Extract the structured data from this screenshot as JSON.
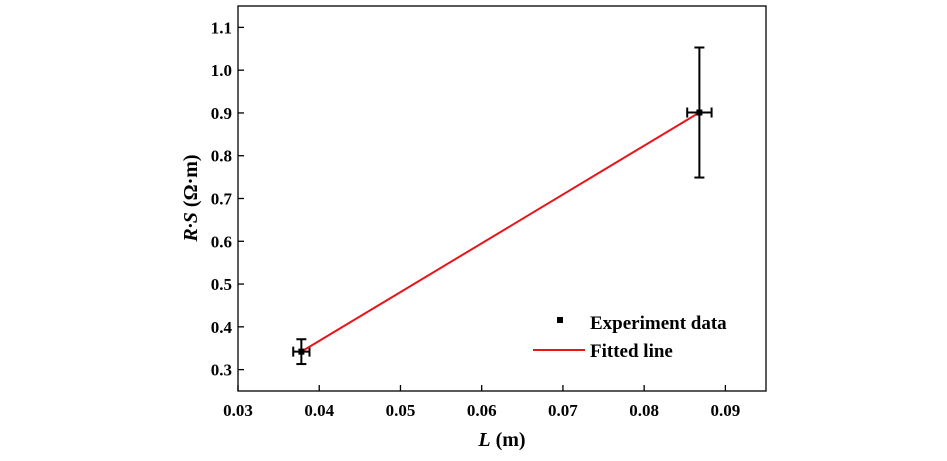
{
  "chart_data": {
    "type": "scatter",
    "xlabel": {
      "var": "L",
      "unit": " (m)"
    },
    "ylabel": {
      "var": "R·S",
      "unit": " (Ω·m)"
    },
    "xlim": [
      0.03,
      0.095
    ],
    "ylim": [
      0.25,
      1.15
    ],
    "xticks": [
      "0.03",
      "0.04",
      "0.05",
      "0.06",
      "0.07",
      "0.08",
      "0.09"
    ],
    "yticks": [
      "0.3",
      "0.4",
      "0.5",
      "0.6",
      "0.7",
      "0.8",
      "0.9",
      "1.0",
      "1.1"
    ],
    "grid": false,
    "legend_position": "bottom-right",
    "series": [
      {
        "name": "Experiment data",
        "kind": "points-with-error-bars",
        "color": "#000000",
        "points": [
          {
            "x": 0.0378,
            "y": 0.342,
            "xerr": 0.001,
            "yerr": 0.029
          },
          {
            "x": 0.0868,
            "y": 0.901,
            "xerr": 0.0015,
            "yerr": 0.152
          }
        ]
      },
      {
        "name": "Fitted line",
        "kind": "line",
        "color": "#e8151b",
        "x": [
          0.0378,
          0.0868
        ],
        "y": [
          0.342,
          0.901
        ]
      }
    ]
  }
}
